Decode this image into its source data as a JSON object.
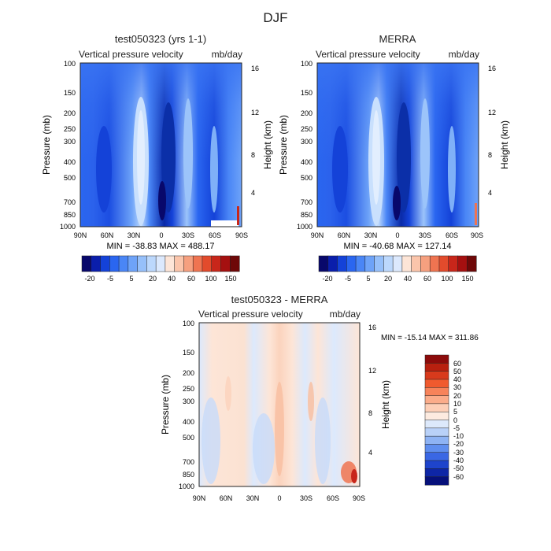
{
  "figure_title": "DJF",
  "chart_data": [
    {
      "type": "heatmap",
      "title": "test050323 (yrs 1-1)",
      "subtitle_left": "Vertical pressure velocity",
      "subtitle_right": "mb/day",
      "ylabel": "Pressure (mb)",
      "ylabel_right": "Height (km)",
      "x_ticks": [
        "90N",
        "60N",
        "30N",
        "0",
        "30S",
        "60S",
        "90S"
      ],
      "y_ticks": [
        "100",
        "150",
        "200",
        "250",
        "300",
        "400",
        "500",
        "700",
        "850",
        "1000"
      ],
      "y_ticks_right": [
        "16",
        "12",
        "8",
        "4"
      ],
      "ylim": [
        1000,
        100
      ],
      "xlim": [
        90,
        -90
      ],
      "stats": "MIN = -38.83   MAX = 488.17",
      "colorbar": {
        "orientation": "horizontal",
        "labels": [
          "-20",
          "-5",
          "5",
          "20",
          "40",
          "60",
          "100",
          "150"
        ],
        "colors": [
          "#08086b",
          "#0a1eab",
          "#1442d8",
          "#2a66f0",
          "#4a86f6",
          "#6ea3f8",
          "#96c0fa",
          "#bcd8fc",
          "#dce9fd",
          "#fde5d7",
          "#fbc5ab",
          "#f6a07f",
          "#ef7451",
          "#e24b2c",
          "#c8261a",
          "#a51010",
          "#6e0808"
        ]
      }
    },
    {
      "type": "heatmap",
      "title": "MERRA",
      "subtitle_left": "Vertical pressure velocity",
      "subtitle_right": "mb/day",
      "ylabel": "Pressure (mb)",
      "ylabel_right": "Height (km)",
      "x_ticks": [
        "90N",
        "60N",
        "30N",
        "0",
        "30S",
        "60S",
        "90S"
      ],
      "y_ticks": [
        "100",
        "150",
        "200",
        "250",
        "300",
        "400",
        "500",
        "700",
        "850",
        "1000"
      ],
      "y_ticks_right": [
        "16",
        "12",
        "8",
        "4"
      ],
      "ylim": [
        1000,
        100
      ],
      "xlim": [
        90,
        -90
      ],
      "stats": "MIN = -40.68   MAX = 127.14",
      "colorbar": {
        "orientation": "horizontal",
        "labels": [
          "-20",
          "-5",
          "5",
          "20",
          "40",
          "60",
          "100",
          "150"
        ],
        "colors": [
          "#08086b",
          "#0a1eab",
          "#1442d8",
          "#2a66f0",
          "#4a86f6",
          "#6ea3f8",
          "#96c0fa",
          "#bcd8fc",
          "#dce9fd",
          "#fde5d7",
          "#fbc5ab",
          "#f6a07f",
          "#ef7451",
          "#e24b2c",
          "#c8261a",
          "#a51010",
          "#6e0808"
        ]
      }
    },
    {
      "type": "heatmap",
      "title": "test050323 - MERRA",
      "subtitle_left": "Vertical pressure velocity",
      "subtitle_right": "mb/day",
      "ylabel": "Pressure (mb)",
      "ylabel_right": "Height (km)",
      "x_ticks": [
        "90N",
        "60N",
        "30N",
        "0",
        "30S",
        "60S",
        "90S"
      ],
      "y_ticks": [
        "100",
        "150",
        "200",
        "250",
        "300",
        "400",
        "500",
        "700",
        "850",
        "1000"
      ],
      "y_ticks_right": [
        "16",
        "12",
        "8",
        "4"
      ],
      "ylim": [
        1000,
        100
      ],
      "xlim": [
        90,
        -90
      ],
      "stats": "MIN = -15.14   MAX = 311.86",
      "colorbar": {
        "orientation": "vertical",
        "labels": [
          "60",
          "50",
          "40",
          "30",
          "20",
          "10",
          "5",
          "0",
          "-5",
          "-10",
          "-20",
          "-30",
          "-40",
          "-50",
          "-60"
        ],
        "colors": [
          "#8c0b0b",
          "#b8200f",
          "#d83a1c",
          "#f05a2e",
          "#f7835a",
          "#fbac8a",
          "#fdcfb7",
          "#fdebe0",
          "#dde9fb",
          "#b9d1f8",
          "#8eb3f4",
          "#5f8eef",
          "#3a67e4",
          "#1e44cc",
          "#0e26a6",
          "#06107a"
        ]
      }
    }
  ]
}
